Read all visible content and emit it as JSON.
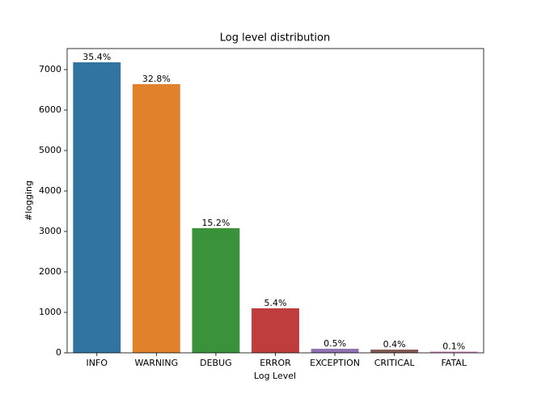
{
  "chart_data": {
    "type": "bar",
    "title": "Log level distribution",
    "x_label": "Log Level",
    "y_label": "#logging",
    "categories": [
      "INFO",
      "WARNING",
      "DEBUG",
      "ERROR",
      "EXCEPTION",
      "CRITICAL",
      "FATAL"
    ],
    "values": [
      7180,
      6640,
      3080,
      1100,
      100,
      80,
      30
    ],
    "annotations": [
      "35.4%",
      "32.8%",
      "15.2%",
      "5.4%",
      "0.5%",
      "0.4%",
      "0.1%"
    ],
    "colors": [
      "#3274a1",
      "#e1812c",
      "#3a923a",
      "#c03d3e",
      "#9372b2",
      "#845b53",
      "#d684bd"
    ],
    "ylim": [
      0,
      7520
    ],
    "yticks": [
      0,
      1000,
      2000,
      3000,
      4000,
      5000,
      6000,
      7000
    ],
    "grid": false
  }
}
